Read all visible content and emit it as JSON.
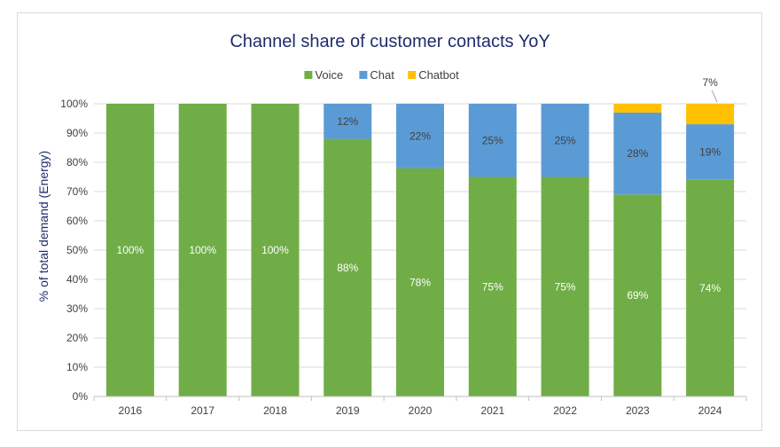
{
  "chart_data": {
    "type": "bar",
    "stacked": true,
    "title": "Channel share of customer contacts YoY",
    "ylabel": "% of total demand (Energy)",
    "xlabel": "",
    "categories": [
      "2016",
      "2017",
      "2018",
      "2019",
      "2020",
      "2021",
      "2022",
      "2023",
      "2024"
    ],
    "ylim": [
      0,
      100
    ],
    "y_ticks": [
      "0%",
      "10%",
      "20%",
      "30%",
      "40%",
      "50%",
      "60%",
      "70%",
      "80%",
      "90%",
      "100%"
    ],
    "legend_position": "top",
    "grid": true,
    "series": [
      {
        "name": "Voice",
        "color": "#70ad47",
        "values": [
          100,
          100,
          100,
          88,
          78,
          75,
          75,
          69,
          74
        ],
        "labels": [
          "100%",
          "100%",
          "100%",
          "88%",
          "78%",
          "75%",
          "75%",
          "69%",
          "74%"
        ]
      },
      {
        "name": "Chat",
        "color": "#5b9bd5",
        "values": [
          0,
          0,
          0,
          12,
          22,
          25,
          25,
          28,
          19
        ],
        "labels": [
          null,
          null,
          null,
          "12%",
          "22%",
          "25%",
          "25%",
          "28%",
          "19%"
        ]
      },
      {
        "name": "Chatbot",
        "color": "#ffc000",
        "values": [
          0,
          0,
          0,
          0,
          0,
          0,
          0,
          3,
          7
        ],
        "labels": [
          null,
          null,
          null,
          null,
          null,
          null,
          null,
          null,
          "7%"
        ]
      }
    ]
  }
}
